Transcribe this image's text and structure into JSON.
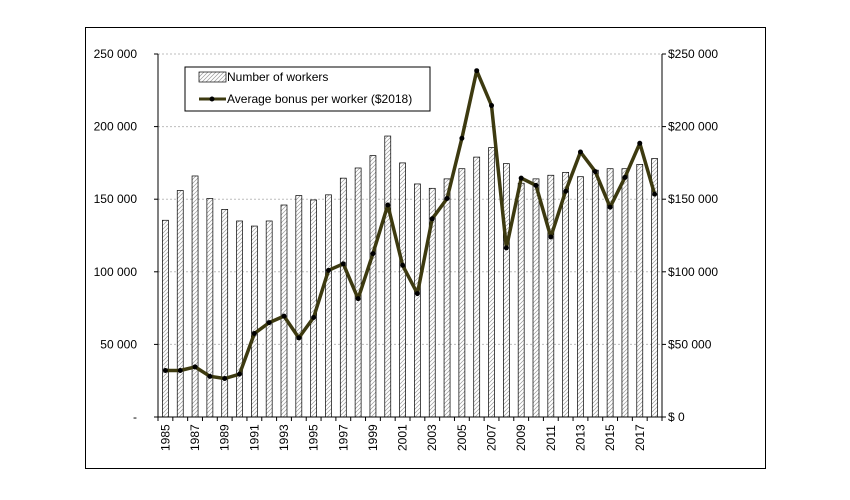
{
  "chart_data": {
    "type": "bar",
    "categories": [
      1985,
      1986,
      1987,
      1988,
      1989,
      1990,
      1991,
      1992,
      1993,
      1994,
      1995,
      1996,
      1997,
      1998,
      1999,
      2000,
      2001,
      2002,
      2003,
      2004,
      2005,
      2006,
      2007,
      2008,
      2009,
      2010,
      2011,
      2012,
      2013,
      2014,
      2015,
      2016,
      2017,
      2018
    ],
    "x_tick_labels": [
      "1985",
      "1987",
      "1989",
      "1991",
      "1993",
      "1995",
      "1997",
      "1999",
      "2001",
      "2003",
      "2005",
      "2007",
      "2009",
      "2011",
      "2013",
      "2015",
      "2017"
    ],
    "series": [
      {
        "name": "Number of workers",
        "kind": "bar",
        "axis": "left",
        "values": [
          135500,
          156000,
          166000,
          150500,
          143000,
          135000,
          131500,
          135000,
          146000,
          152500,
          149500,
          153000,
          164500,
          171500,
          180000,
          193500,
          175000,
          160500,
          157500,
          164000,
          171000,
          179000,
          185500,
          174500,
          161000,
          164000,
          166500,
          168500,
          165500,
          170000,
          171000,
          171000,
          174000,
          178000
        ]
      },
      {
        "name": "Average bonus per worker ($2018)",
        "kind": "line",
        "axis": "right",
        "values": [
          32000,
          32000,
          34500,
          28000,
          26500,
          29500,
          57500,
          65000,
          69500,
          54500,
          68500,
          101000,
          105500,
          81500,
          112500,
          146000,
          104500,
          85000,
          136500,
          150500,
          192000,
          238500,
          214500,
          116500,
          164500,
          159500,
          124000,
          155500,
          182500,
          169000,
          144500,
          165000,
          188500,
          153500
        ]
      }
    ],
    "left_axis": {
      "ylim": [
        0,
        250000
      ],
      "ticks": [
        "-",
        "50 000",
        "100 000",
        "150 000",
        "200 000",
        "250 000"
      ]
    },
    "right_axis": {
      "ylim": [
        0,
        250000
      ],
      "ticks": [
        "$ 0",
        "$50 000",
        "$100 000",
        "$150 000",
        "$200 000",
        "$250 000"
      ]
    },
    "grid": true,
    "legend_position": "top-left",
    "colors": {
      "line": "#3d3a10",
      "marker": "#000000",
      "bar_fill": "#ffffff",
      "bar_hatch": "#9a9a9a",
      "grid": "#bdbdbd"
    }
  }
}
